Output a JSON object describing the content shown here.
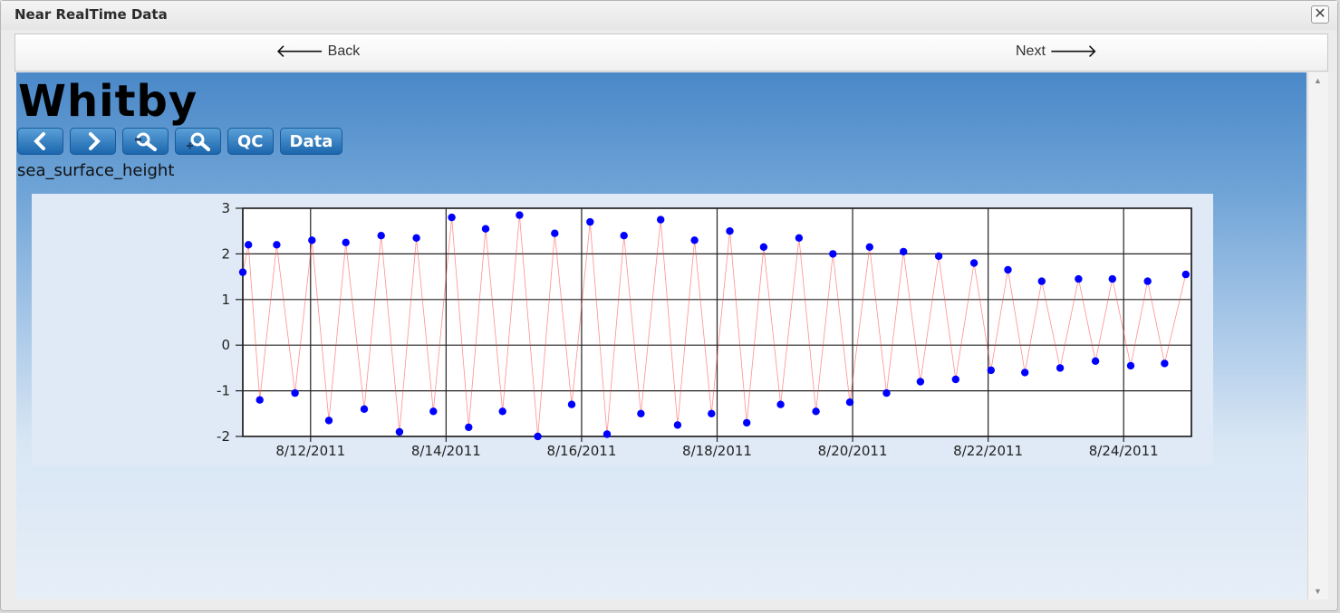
{
  "window": {
    "title": "Near RealTime Data",
    "close_glyph": "✕"
  },
  "nav": {
    "back_label": "Back",
    "next_label": "Next"
  },
  "station": {
    "name": "Whitby",
    "variable": "sea_surface_height"
  },
  "toolbar": {
    "prev_icon": "chevron-left-icon",
    "next_icon": "chevron-right-icon",
    "zoom_out_icon": "zoom-out-icon",
    "zoom_in_icon": "zoom-in-icon",
    "qc_label": "QC",
    "data_label": "Data"
  },
  "colors": {
    "accent": "#1b66ad",
    "series": "#0000ff",
    "background_top": "#4a88c8"
  },
  "chart_data": {
    "type": "scatter",
    "title": "",
    "xlabel": "",
    "ylabel": "",
    "ylim": [
      -2,
      3
    ],
    "yticks": [
      3,
      2,
      1,
      0,
      -1,
      -2
    ],
    "xlim": [
      "2011-08-11 00:00",
      "2011-08-25 00:00"
    ],
    "xticks": [
      "8/12/2011",
      "8/14/2011",
      "8/16/2011",
      "8/18/2011",
      "8/20/2011",
      "8/22/2011",
      "8/24/2011"
    ],
    "grid": true,
    "series": [
      {
        "marker_color": "#0000ff",
        "points": [
          {
            "x": "2011-08-11 00:00",
            "y": 1.6
          },
          {
            "x": "2011-08-11 02:00",
            "y": 2.2
          },
          {
            "x": "2011-08-11 06:00",
            "y": -1.2
          },
          {
            "x": "2011-08-11 12:00",
            "y": 2.2
          },
          {
            "x": "2011-08-11 18:30",
            "y": -1.05
          },
          {
            "x": "2011-08-12 00:30",
            "y": 2.3
          },
          {
            "x": "2011-08-12 06:30",
            "y": -1.65
          },
          {
            "x": "2011-08-12 12:30",
            "y": 2.25
          },
          {
            "x": "2011-08-12 19:00",
            "y": -1.4
          },
          {
            "x": "2011-08-13 01:00",
            "y": 2.4
          },
          {
            "x": "2011-08-13 07:30",
            "y": -1.9
          },
          {
            "x": "2011-08-13 13:30",
            "y": 2.35
          },
          {
            "x": "2011-08-13 19:30",
            "y": -1.45
          },
          {
            "x": "2011-08-14 02:00",
            "y": 2.8
          },
          {
            "x": "2011-08-14 08:00",
            "y": -1.8
          },
          {
            "x": "2011-08-14 14:00",
            "y": 2.55
          },
          {
            "x": "2011-08-14 20:00",
            "y": -1.45
          },
          {
            "x": "2011-08-15 02:00",
            "y": 2.85
          },
          {
            "x": "2011-08-15 08:30",
            "y": -2.0
          },
          {
            "x": "2011-08-15 14:30",
            "y": 2.45
          },
          {
            "x": "2011-08-15 20:30",
            "y": -1.3
          },
          {
            "x": "2011-08-16 03:00",
            "y": 2.7
          },
          {
            "x": "2011-08-16 09:00",
            "y": -1.95
          },
          {
            "x": "2011-08-16 15:00",
            "y": 2.4
          },
          {
            "x": "2011-08-16 21:00",
            "y": -1.5
          },
          {
            "x": "2011-08-17 04:00",
            "y": 2.75
          },
          {
            "x": "2011-08-17 10:00",
            "y": -1.75
          },
          {
            "x": "2011-08-17 16:00",
            "y": 2.3
          },
          {
            "x": "2011-08-17 22:00",
            "y": -1.5
          },
          {
            "x": "2011-08-18 04:30",
            "y": 2.5
          },
          {
            "x": "2011-08-18 10:30",
            "y": -1.7
          },
          {
            "x": "2011-08-18 16:30",
            "y": 2.15
          },
          {
            "x": "2011-08-18 22:30",
            "y": -1.3
          },
          {
            "x": "2011-08-19 05:00",
            "y": 2.35
          },
          {
            "x": "2011-08-19 11:00",
            "y": -1.45
          },
          {
            "x": "2011-08-19 17:00",
            "y": 2.0
          },
          {
            "x": "2011-08-19 23:00",
            "y": -1.25
          },
          {
            "x": "2011-08-20 06:00",
            "y": 2.15
          },
          {
            "x": "2011-08-20 12:00",
            "y": -1.05
          },
          {
            "x": "2011-08-20 18:00",
            "y": 2.05
          },
          {
            "x": "2011-08-21 00:00",
            "y": -0.8
          },
          {
            "x": "2011-08-21 06:30",
            "y": 1.95
          },
          {
            "x": "2011-08-21 12:30",
            "y": -0.75
          },
          {
            "x": "2011-08-21 19:00",
            "y": 1.8
          },
          {
            "x": "2011-08-22 01:00",
            "y": -0.55
          },
          {
            "x": "2011-08-22 07:00",
            "y": 1.65
          },
          {
            "x": "2011-08-22 13:00",
            "y": -0.6
          },
          {
            "x": "2011-08-22 19:00",
            "y": 1.4
          },
          {
            "x": "2011-08-23 01:30",
            "y": -0.5
          },
          {
            "x": "2011-08-23 08:00",
            "y": 1.45
          },
          {
            "x": "2011-08-23 14:00",
            "y": -0.35
          },
          {
            "x": "2011-08-23 20:00",
            "y": 1.45
          },
          {
            "x": "2011-08-24 02:30",
            "y": -0.45
          },
          {
            "x": "2011-08-24 08:30",
            "y": 1.4
          },
          {
            "x": "2011-08-24 14:30",
            "y": -0.4
          },
          {
            "x": "2011-08-24 22:00",
            "y": 1.55
          }
        ]
      }
    ]
  }
}
